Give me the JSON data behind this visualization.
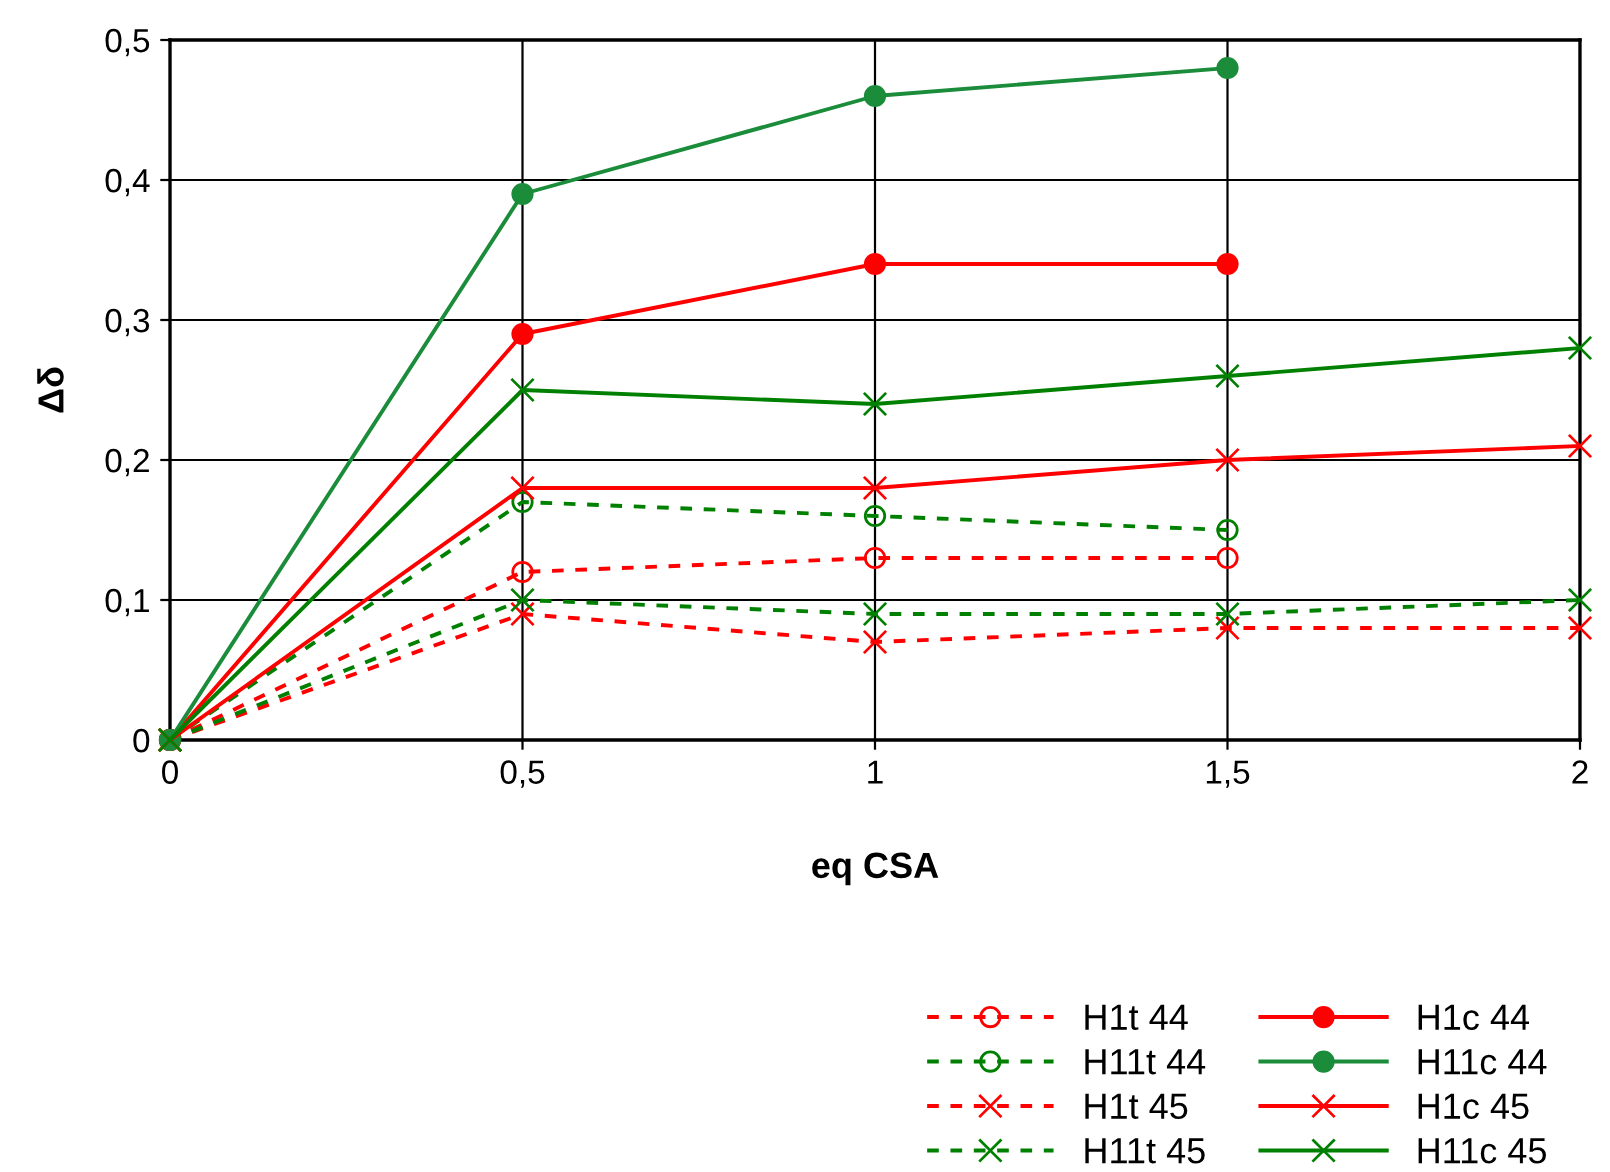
{
  "chart_data": {
    "type": "line",
    "xlabel": "eq CSA",
    "ylabel": "Δδ",
    "x": [
      0,
      0.5,
      1,
      1.5,
      2
    ],
    "xlim": [
      0,
      2
    ],
    "xticks": [
      0,
      {
        "value": 0.5,
        "label": "0,5"
      },
      1,
      {
        "value": 1.5,
        "label": "1,5"
      },
      2
    ],
    "ylim": [
      0,
      0.5
    ],
    "yticks": [
      0,
      {
        "value": 0.1,
        "label": "0,1"
      },
      {
        "value": 0.2,
        "label": "0,2"
      },
      {
        "value": 0.3,
        "label": "0,3"
      },
      {
        "value": 0.4,
        "label": "0,4"
      },
      {
        "value": 0.5,
        "label": "0,5"
      }
    ],
    "grid": true,
    "legend": "bottom right",
    "series": [
      {
        "name": "H1t 44",
        "color": "#ff0000",
        "marker": "circle",
        "line_style": "dashed",
        "values": [
          0,
          0.12,
          0.13,
          0.13,
          null
        ]
      },
      {
        "name": "H11t 44",
        "color": "#008000",
        "marker": "circle",
        "line_style": "dashed",
        "values": [
          0,
          0.17,
          0.16,
          0.15,
          null
        ]
      },
      {
        "name": "H1t 45",
        "color": "#ff0000",
        "marker": "cross",
        "line_style": "dashed",
        "values": [
          0,
          0.09,
          0.07,
          0.08,
          0.08
        ]
      },
      {
        "name": "H11t 45",
        "color": "#008000",
        "marker": "cross",
        "line_style": "dashed",
        "values": [
          0,
          0.1,
          0.09,
          0.09,
          0.1
        ]
      },
      {
        "name": "H1c 44",
        "color": "#ff0000",
        "marker": "circle",
        "line_style": "solid",
        "values": [
          0,
          0.29,
          0.34,
          0.34,
          null
        ]
      },
      {
        "name": "H11c 44",
        "color": "#1a8c3a",
        "marker": "circle",
        "line_style": "solid",
        "values": [
          0,
          0.39,
          0.46,
          0.48,
          null
        ]
      },
      {
        "name": "H1c 45",
        "color": "#ff0000",
        "marker": "cross",
        "line_style": "solid",
        "values": [
          0,
          0.18,
          0.18,
          0.2,
          0.21
        ]
      },
      {
        "name": "H11c 45",
        "color": "#008000",
        "marker": "cross",
        "line_style": "solid",
        "values": [
          0,
          0.25,
          0.24,
          0.26,
          0.28
        ]
      }
    ]
  }
}
